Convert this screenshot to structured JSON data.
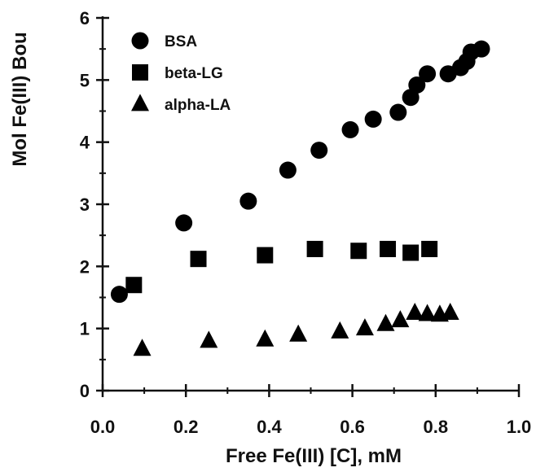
{
  "chart_data": {
    "type": "scatter",
    "title": "",
    "xlabel": "Free Fe(III) [C], mM",
    "ylabel": "Mol Fe(III) Bou",
    "xlim": [
      0.0,
      1.0
    ],
    "ylim": [
      0,
      6
    ],
    "xticks": [
      "0.0",
      "0.2",
      "0.4",
      "0.6",
      "0.8",
      "1.0"
    ],
    "yticks": [
      "0",
      "1",
      "2",
      "3",
      "4",
      "5",
      "6"
    ],
    "grid": false,
    "legend_position": "top-left",
    "series": [
      {
        "name": "BSA",
        "marker": "circle",
        "color": "#000000",
        "points": [
          [
            0.04,
            1.55
          ],
          [
            0.195,
            2.7
          ],
          [
            0.35,
            3.05
          ],
          [
            0.445,
            3.55
          ],
          [
            0.52,
            3.87
          ],
          [
            0.595,
            4.2
          ],
          [
            0.65,
            4.37
          ],
          [
            0.71,
            4.48
          ],
          [
            0.74,
            4.72
          ],
          [
            0.755,
            4.92
          ],
          [
            0.78,
            5.1
          ],
          [
            0.83,
            5.1
          ],
          [
            0.86,
            5.2
          ],
          [
            0.875,
            5.3
          ],
          [
            0.885,
            5.45
          ],
          [
            0.91,
            5.5
          ]
        ]
      },
      {
        "name": "beta-LG",
        "marker": "square",
        "color": "#000000",
        "points": [
          [
            0.075,
            1.7
          ],
          [
            0.23,
            2.12
          ],
          [
            0.39,
            2.18
          ],
          [
            0.51,
            2.28
          ],
          [
            0.615,
            2.25
          ],
          [
            0.685,
            2.28
          ],
          [
            0.74,
            2.22
          ],
          [
            0.785,
            2.28
          ]
        ]
      },
      {
        "name": "alpha-LA",
        "marker": "triangle",
        "color": "#000000",
        "points": [
          [
            0.095,
            0.67
          ],
          [
            0.255,
            0.8
          ],
          [
            0.39,
            0.82
          ],
          [
            0.47,
            0.9
          ],
          [
            0.57,
            0.95
          ],
          [
            0.63,
            1.0
          ],
          [
            0.68,
            1.07
          ],
          [
            0.715,
            1.13
          ],
          [
            0.75,
            1.25
          ],
          [
            0.78,
            1.23
          ],
          [
            0.81,
            1.22
          ],
          [
            0.835,
            1.25
          ]
        ]
      }
    ]
  }
}
